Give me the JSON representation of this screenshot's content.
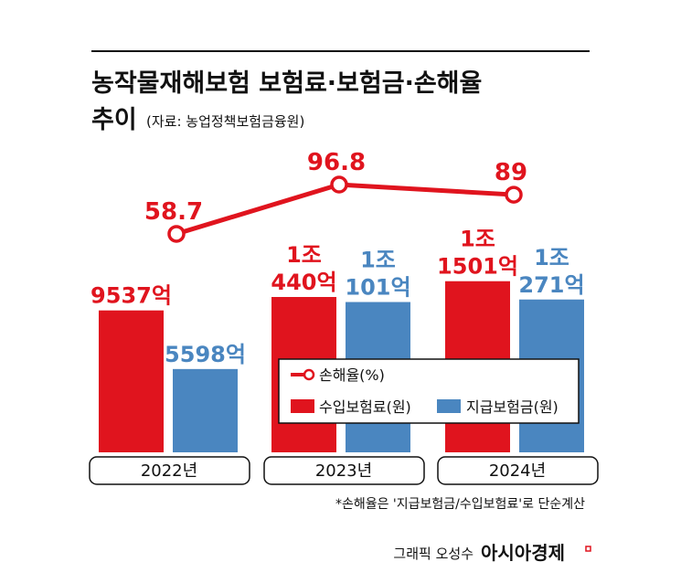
{
  "header": {
    "title_line1": "농작물재해보험 보험료·보험금·손해율",
    "title_line2": "추이",
    "source": "(자료: 농업정책보험금융원)"
  },
  "colors": {
    "premium": "#e0141e",
    "claims": "#4a86c0",
    "rate": "#e0141e"
  },
  "chart_data": {
    "type": "bar",
    "categories": [
      "2022년",
      "2023년",
      "2024년"
    ],
    "series": [
      {
        "name": "수입보험료(원)",
        "kind": "bar",
        "values": [
          9537,
          10440,
          11501
        ],
        "labels": [
          [
            "9537억"
          ],
          [
            "1조",
            "440억"
          ],
          [
            "1조",
            "1501억"
          ]
        ]
      },
      {
        "name": "지급보험금(원)",
        "kind": "bar",
        "values": [
          5598,
          10101,
          10271
        ],
        "labels": [
          [
            "5598억"
          ],
          [
            "1조",
            "101억"
          ],
          [
            "1조",
            "271억"
          ]
        ]
      },
      {
        "name": "손해율(%)",
        "kind": "line",
        "values": [
          58.7,
          96.8,
          89
        ],
        "labels": [
          "58.7",
          "96.8",
          "89"
        ]
      }
    ]
  },
  "legend": {
    "rate": "손해율(%)",
    "premium": "수입보험료(원)",
    "claims": "지급보험금(원)"
  },
  "footnote": "*손해율은 '지급보험금/수입보험료'로 단순계산",
  "credit": "그래픽 오성수",
  "brand": "아시아경제"
}
